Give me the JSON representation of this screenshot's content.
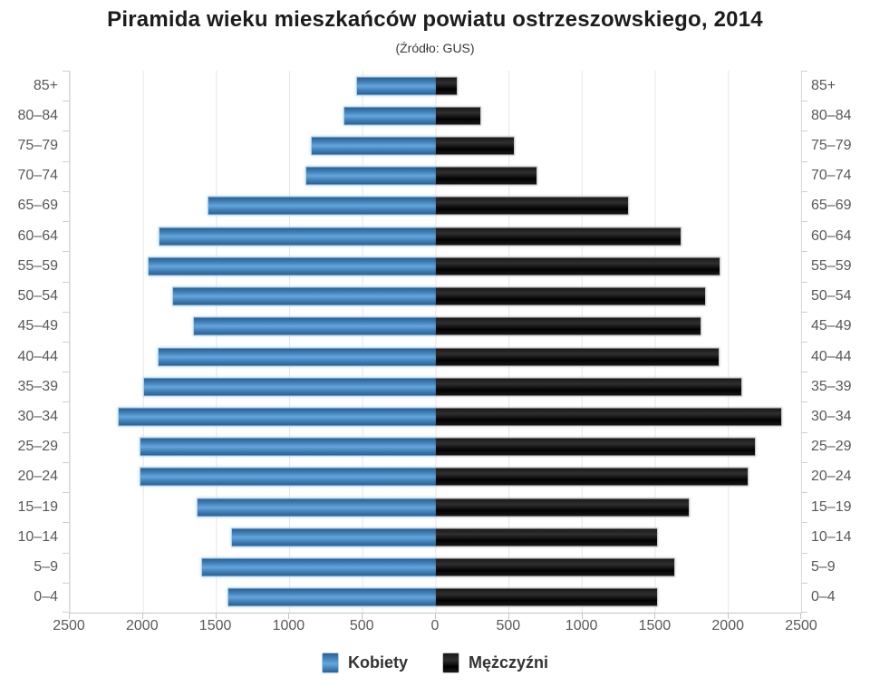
{
  "header": {
    "title": "Piramida wieku mieszkańców powiatu ostrzeszowskiego, 2014",
    "subtitle": "(Źródło: GUS)"
  },
  "chart_data": {
    "type": "bar",
    "variant": "population-pyramid-horizontal",
    "title": "Piramida wieku mieszkańców powiatu ostrzeszowskiego, 2014",
    "subtitle": "(Źródło: GUS)",
    "categories": [
      "85+",
      "80–84",
      "75–79",
      "70–74",
      "65–69",
      "60–64",
      "55–59",
      "50–54",
      "45–49",
      "40–44",
      "35–39",
      "30–34",
      "25–29",
      "20–24",
      "15–19",
      "10–14",
      "5–9",
      "0–4"
    ],
    "series": [
      {
        "name": "Kobiety",
        "side": "left",
        "color": "#4a8bc2",
        "values": [
          540,
          630,
          850,
          890,
          1560,
          1890,
          1970,
          1800,
          1660,
          1900,
          2000,
          2170,
          2020,
          2020,
          1630,
          1400,
          1600,
          1420
        ]
      },
      {
        "name": "Mężczyźni",
        "side": "right",
        "color": "#141414",
        "values": [
          150,
          310,
          540,
          700,
          1320,
          1680,
          1950,
          1850,
          1820,
          1940,
          2100,
          2370,
          2190,
          2140,
          1740,
          1520,
          1640,
          1520
        ]
      }
    ],
    "x_ticks": [
      "2500",
      "2000",
      "1500",
      "1000",
      "500",
      "0",
      "500",
      "1000",
      "1500",
      "2000",
      "2500"
    ],
    "x_max_per_side": 2500,
    "grid": true,
    "grid_color": "#e7e7e7",
    "axis_label_color": "#58595b",
    "legend_position": "bottom",
    "y_axis_sides": [
      "left",
      "right"
    ]
  }
}
